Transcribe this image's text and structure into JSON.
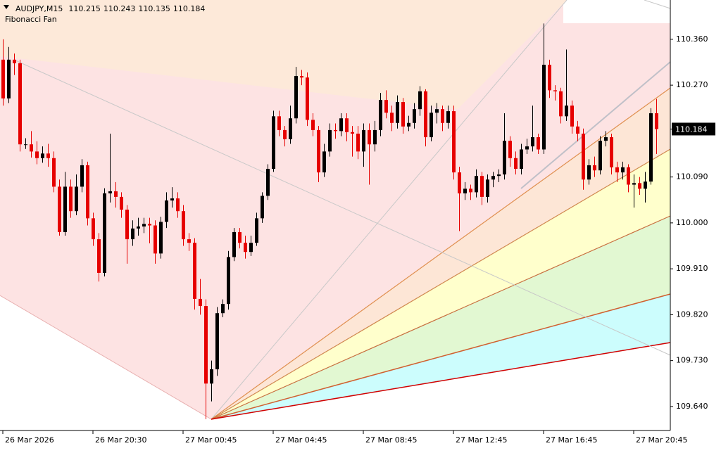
{
  "chart_data": {
    "type": "candlestick",
    "symbol": "AUDJPY,M15",
    "header_values": [
      110.215,
      110.243,
      110.135,
      110.184
    ],
    "indicator": "Fibonacci Fan",
    "current_price": 110.184,
    "colors": {
      "up": "#000000",
      "down": "#e60000"
    },
    "ylim": [
      109.593,
      110.437
    ],
    "yticks": [
      {
        "value": 110.36,
        "label": "110.360"
      },
      {
        "value": 110.27,
        "label": "110.270"
      },
      {
        "value": 110.09,
        "label": "110.090"
      },
      {
        "value": 110.0,
        "label": "110.000"
      },
      {
        "value": 109.91,
        "label": "109.910"
      },
      {
        "value": 109.82,
        "label": "109.820"
      },
      {
        "value": 109.73,
        "label": "109.730"
      },
      {
        "value": 109.64,
        "label": "109.640"
      }
    ],
    "categories": [
      "26 Mar 2026",
      null,
      null,
      null,
      null,
      null,
      null,
      null,
      null,
      null,
      null,
      null,
      null,
      null,
      null,
      null,
      "26 Mar 20:30",
      null,
      null,
      null,
      null,
      null,
      null,
      null,
      null,
      null,
      null,
      null,
      null,
      null,
      null,
      null,
      "27 Mar 00:45",
      null,
      null,
      null,
      null,
      null,
      null,
      null,
      null,
      null,
      null,
      null,
      null,
      null,
      null,
      null,
      "27 Mar 04:45",
      null,
      null,
      null,
      null,
      null,
      null,
      null,
      null,
      null,
      null,
      null,
      null,
      null,
      null,
      null,
      "27 Mar 08:45",
      null,
      null,
      null,
      null,
      null,
      null,
      null,
      null,
      null,
      null,
      null,
      null,
      null,
      null,
      null,
      "27 Mar 12:45",
      null,
      null,
      null,
      null,
      null,
      null,
      null,
      null,
      null,
      null,
      null,
      null,
      null,
      null,
      null,
      "27 Mar 16:45",
      null,
      null,
      null,
      null,
      null,
      null,
      null,
      null,
      null,
      null,
      null,
      null,
      null,
      null,
      null,
      "27 Mar 20:45",
      null,
      null,
      null,
      null
    ],
    "open": [
      110.32,
      110.244,
      110.32,
      110.313,
      110.154,
      110.154,
      110.14,
      110.127,
      110.136,
      110.127,
      110.071,
      109.982,
      110.071,
      110.023,
      110.071,
      110.113,
      110.009,
      109.968,
      109.902,
      110.058,
      110.062,
      110.051,
      110.026,
      109.968,
      109.989,
      109.993,
      109.998,
      109.995,
      109.94,
      110.002,
      110.044,
      110.048,
      110.023,
      109.968,
      109.961,
      109.851,
      109.837,
      109.685,
      109.713,
      109.823,
      109.841,
      109.933,
      109.982,
      109.961,
      109.943,
      109.961,
      110.009,
      110.053,
      110.106,
      110.209,
      110.182,
      110.164,
      110.205,
      110.288,
      110.285,
      110.202,
      110.182,
      110.099,
      110.14,
      110.182,
      110.18,
      110.205,
      110.178,
      110.175,
      110.14,
      110.182,
      110.154,
      110.182,
      110.241,
      110.216,
      110.196,
      110.237,
      110.189,
      110.196,
      110.223,
      110.258,
      110.168,
      110.216,
      110.223,
      110.196,
      110.219,
      110.099,
      110.058,
      110.067,
      110.06,
      110.092,
      110.051,
      110.085,
      110.092,
      110.095,
      110.161,
      110.127,
      110.106,
      110.144,
      110.15,
      110.168,
      110.144,
      110.31,
      110.26,
      110.258,
      110.209,
      110.23,
      110.189,
      110.175,
      110.085,
      110.113,
      110.103,
      110.161,
      110.168,
      110.109,
      110.099,
      110.109,
      110.075,
      110.078,
      110.067,
      110.081,
      110.215
    ],
    "high": [
      110.36,
      110.345,
      110.332,
      110.32,
      110.166,
      110.18,
      110.16,
      110.15,
      110.155,
      110.14,
      110.085,
      110.1,
      110.085,
      110.095,
      110.125,
      110.12,
      110.02,
      109.98,
      110.068,
      110.175,
      110.08,
      110.06,
      110.035,
      110.005,
      110.01,
      110.01,
      110.01,
      110.005,
      110.012,
      110.06,
      110.07,
      110.06,
      110.035,
      109.98,
      109.97,
      109.89,
      109.85,
      109.73,
      109.835,
      109.85,
      109.945,
      109.99,
      109.99,
      109.975,
      109.975,
      110.02,
      110.06,
      110.115,
      110.22,
      110.22,
      110.19,
      110.23,
      110.306,
      110.3,
      110.295,
      110.215,
      110.19,
      110.155,
      110.195,
      110.195,
      110.215,
      110.215,
      110.19,
      110.19,
      110.195,
      110.195,
      110.2,
      110.255,
      110.26,
      110.23,
      110.25,
      110.245,
      110.21,
      110.235,
      110.268,
      110.262,
      110.23,
      110.235,
      110.23,
      110.23,
      110.23,
      110.11,
      110.08,
      110.075,
      110.105,
      110.1,
      110.095,
      110.1,
      110.105,
      110.215,
      110.17,
      110.14,
      110.155,
      110.165,
      110.23,
      110.175,
      110.391,
      110.32,
      110.27,
      110.265,
      110.34,
      110.24,
      110.2,
      110.185,
      110.125,
      110.13,
      110.17,
      110.18,
      110.175,
      110.12,
      110.12,
      110.115,
      110.095,
      110.09,
      110.1,
      110.225,
      110.243
    ],
    "low": [
      110.23,
      110.235,
      110.29,
      110.14,
      110.145,
      110.128,
      110.115,
      110.118,
      110.11,
      110.06,
      109.975,
      109.975,
      110.01,
      110.015,
      110.06,
      109.995,
      109.955,
      109.885,
      109.895,
      110.04,
      110.03,
      110.01,
      109.92,
      109.955,
      109.975,
      109.98,
      109.96,
      109.92,
      109.93,
      109.99,
      110.03,
      110.01,
      109.955,
      109.945,
      109.83,
      109.82,
      109.615,
      109.65,
      109.7,
      109.815,
      109.83,
      109.925,
      109.95,
      109.93,
      109.935,
      109.955,
      110.0,
      110.045,
      110.1,
      110.17,
      110.15,
      110.155,
      110.195,
      110.27,
      110.19,
      110.17,
      110.08,
      110.09,
      110.13,
      110.165,
      110.17,
      110.16,
      110.13,
      110.125,
      110.11,
      110.075,
      110.14,
      110.17,
      110.205,
      110.18,
      110.185,
      110.175,
      110.18,
      110.185,
      110.21,
      110.15,
      110.16,
      110.195,
      110.18,
      110.185,
      110.085,
      109.984,
      110.045,
      110.045,
      110.05,
      110.035,
      110.04,
      110.07,
      110.08,
      110.085,
      110.11,
      110.095,
      110.095,
      110.135,
      110.14,
      110.135,
      110.135,
      110.245,
      110.24,
      110.195,
      110.2,
      110.175,
      110.16,
      110.065,
      110.075,
      110.09,
      110.095,
      110.15,
      110.095,
      110.08,
      110.085,
      110.06,
      110.03,
      110.055,
      110.04,
      110.075,
      110.135
    ],
    "close": [
      110.244,
      110.32,
      110.313,
      110.154,
      110.154,
      110.14,
      110.127,
      110.136,
      110.127,
      110.071,
      109.982,
      110.071,
      110.023,
      110.071,
      110.113,
      110.009,
      109.968,
      109.902,
      110.058,
      110.062,
      110.051,
      110.026,
      109.968,
      109.989,
      109.993,
      109.998,
      109.995,
      109.94,
      110.002,
      110.044,
      110.048,
      110.023,
      109.968,
      109.961,
      109.851,
      109.837,
      109.685,
      109.713,
      109.823,
      109.841,
      109.933,
      109.982,
      109.961,
      109.943,
      109.961,
      110.009,
      110.053,
      110.106,
      110.209,
      110.182,
      110.164,
      110.205,
      110.288,
      110.285,
      110.202,
      110.182,
      110.099,
      110.14,
      110.182,
      110.18,
      110.205,
      110.178,
      110.175,
      110.14,
      110.182,
      110.154,
      110.182,
      110.241,
      110.216,
      110.196,
      110.237,
      110.189,
      110.196,
      110.223,
      110.258,
      110.168,
      110.216,
      110.223,
      110.196,
      110.219,
      110.099,
      110.058,
      110.067,
      110.06,
      110.092,
      110.051,
      110.085,
      110.092,
      110.095,
      110.161,
      110.127,
      110.106,
      110.144,
      110.15,
      110.168,
      110.144,
      110.31,
      110.26,
      110.258,
      110.209,
      110.23,
      110.189,
      110.175,
      110.085,
      110.113,
      110.103,
      110.161,
      110.168,
      110.109,
      110.099,
      110.109,
      110.075,
      110.078,
      110.067,
      110.081,
      110.215,
      110.184
    ]
  }
}
